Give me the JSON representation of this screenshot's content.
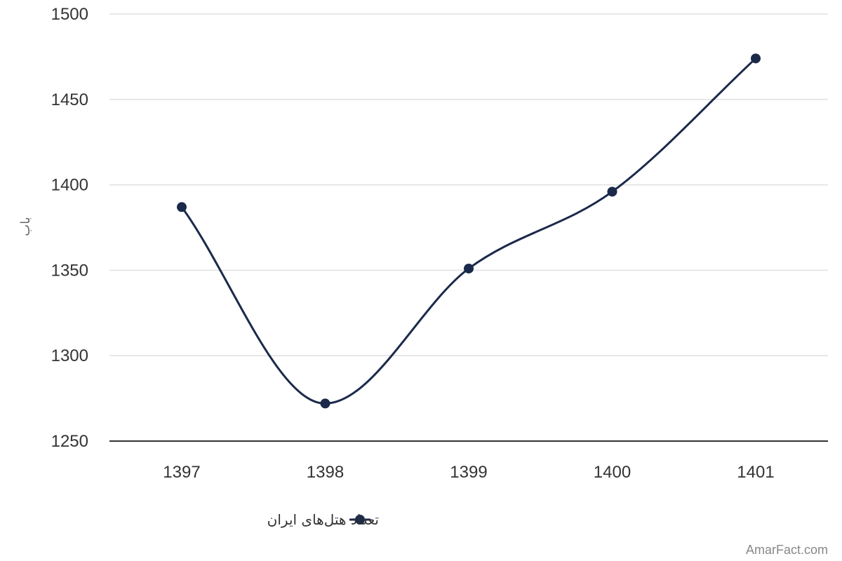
{
  "chart_data": {
    "type": "line",
    "title": "",
    "xlabel": "",
    "ylabel": "باب",
    "categories": [
      "1397",
      "1398",
      "1399",
      "1400",
      "1401"
    ],
    "series": [
      {
        "name": "تعداد هتل‌های ایران",
        "values": [
          1387,
          1272,
          1351,
          1396,
          1474
        ]
      }
    ],
    "ylim": [
      1250,
      1500
    ],
    "yticks": [
      1250,
      1300,
      1350,
      1400,
      1450,
      1500
    ],
    "grid": true,
    "smooth": true,
    "legend_position": "bottom-center",
    "line_color": "#1b2a4a",
    "grid_color": "#e0e0e0",
    "axis_color": "#333333"
  },
  "watermark": "AmarFact.com"
}
